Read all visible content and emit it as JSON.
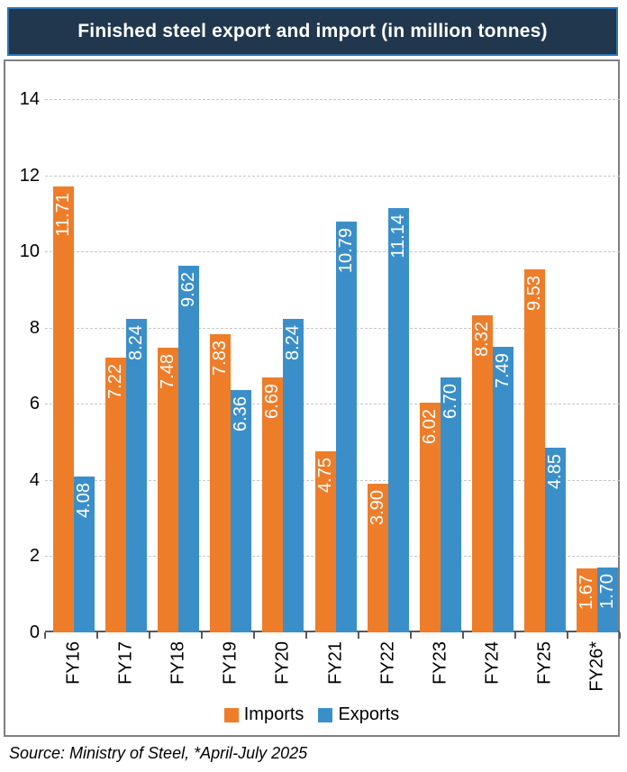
{
  "title": "Finished steel export and import (in million tonnes)",
  "legend": {
    "imports": "Imports",
    "exports": "Exports"
  },
  "source": "Source: Ministry of Steel, *April-July 2025",
  "colors": {
    "imports": "#EE7D2A",
    "exports": "#3B8FC9",
    "title_bg": "#21374D",
    "title_border": "#2E74B5",
    "frame_border": "#7F7F7F",
    "gridline": "#C6C6C6",
    "axis": "#595959",
    "value_label_text": "#ffffff"
  },
  "y_axis": {
    "tick_labels": [
      "0",
      "2",
      "4",
      "6",
      "8",
      "10",
      "12",
      "14"
    ]
  },
  "chart_data": {
    "type": "bar",
    "title": "Finished steel export and import (in million tonnes)",
    "categories": [
      "FY16",
      "FY17",
      "FY18",
      "FY19",
      "FY20",
      "FY21",
      "FY22",
      "FY23",
      "FY24",
      "FY25",
      "FY26*"
    ],
    "series": [
      {
        "name": "Imports",
        "color": "#EE7D2A",
        "values": [
          11.71,
          7.22,
          7.48,
          7.83,
          6.69,
          4.75,
          3.9,
          6.02,
          8.32,
          9.53,
          1.67
        ]
      },
      {
        "name": "Exports",
        "color": "#3B8FC9",
        "values": [
          4.08,
          8.24,
          9.62,
          6.36,
          8.24,
          10.79,
          11.14,
          6.7,
          7.49,
          4.85,
          1.7
        ]
      }
    ],
    "xlabel": "",
    "ylabel": "",
    "ylim": [
      0,
      14
    ],
    "ytick_step": 2,
    "grid": "horizontal-dashed",
    "legend_position": "bottom",
    "value_labels": "inside-end rotated 90deg white, two decimals",
    "bar_label_format": "0.00",
    "footnote": "*April-July 2025"
  }
}
